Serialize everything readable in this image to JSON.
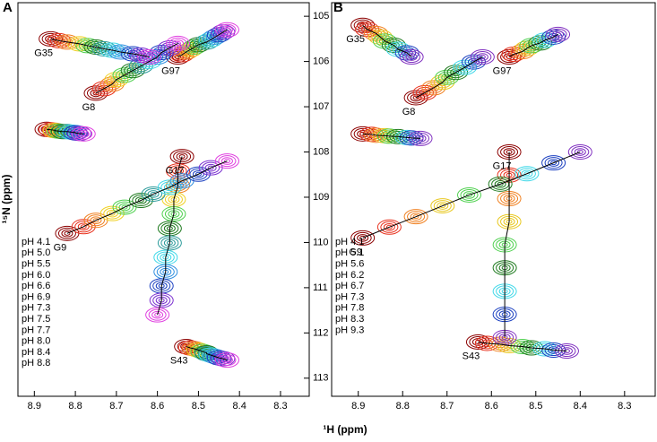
{
  "chart_data": [
    {
      "type": "contour",
      "title": "A",
      "ylabel": "¹⁵N (ppm)",
      "xlabel": "¹H (ppm)",
      "xlim": [
        8.94,
        8.23
      ],
      "ylim": [
        104.7,
        113.4
      ],
      "xticks": [
        8.9,
        8.8,
        8.7,
        8.6,
        8.5,
        8.4,
        8.3
      ],
      "yticks": [
        105,
        106,
        107,
        108,
        109,
        110,
        111,
        112,
        113
      ],
      "categories": [
        "G35",
        "G97",
        "G8",
        null,
        "G17",
        "G9",
        "S43"
      ],
      "series": [
        {
          "name": "pH 4.1",
          "color": "#8b0000",
          "x": [
            8.86,
            8.55,
            8.75,
            8.87,
            8.54,
            8.82,
            8.53
          ],
          "y": [
            105.5,
            105.9,
            106.7,
            107.5,
            108.1,
            109.8,
            112.3
          ]
        },
        {
          "name": "pH 5.0",
          "color": "#e8301c",
          "x": [
            8.84,
            8.54,
            8.73,
            8.86,
            8.55,
            8.78,
            8.52
          ],
          "y": [
            105.54,
            105.85,
            106.6,
            107.51,
            108.42,
            109.65,
            112.33
          ]
        },
        {
          "name": "pH 5.5",
          "color": "#f08020",
          "x": [
            8.82,
            8.53,
            8.71,
            8.85,
            8.55,
            8.75,
            8.51
          ],
          "y": [
            105.57,
            105.79,
            106.5,
            107.52,
            108.74,
            109.51,
            112.35
          ]
        },
        {
          "name": "pH 6.0",
          "color": "#f0d020",
          "x": [
            8.79,
            8.52,
            8.7,
            8.85,
            8.56,
            8.71,
            8.5
          ],
          "y": [
            105.61,
            105.74,
            106.4,
            107.53,
            109.05,
            109.36,
            112.38
          ]
        },
        {
          "name": "pH 6.6",
          "color": "#4fd04f",
          "x": [
            8.77,
            8.51,
            8.68,
            8.84,
            8.56,
            8.68,
            8.49
          ],
          "y": [
            105.65,
            105.68,
            106.3,
            107.54,
            109.37,
            109.22,
            112.41
          ]
        },
        {
          "name": "pH 6.9",
          "color": "#1e7a1e",
          "x": [
            8.75,
            8.5,
            8.66,
            8.83,
            8.57,
            8.64,
            8.48
          ],
          "y": [
            105.68,
            105.63,
            106.2,
            107.55,
            109.69,
            109.07,
            112.44
          ]
        },
        {
          "name": "pH 7.3",
          "color": "#2a9a9a",
          "x": [
            8.73,
            8.48,
            8.64,
            8.82,
            8.57,
            8.61,
            8.48
          ],
          "y": [
            105.72,
            105.57,
            106.1,
            107.55,
            110.01,
            108.93,
            112.46
          ]
        },
        {
          "name": "pH 7.5",
          "color": "#40d8e8",
          "x": [
            8.71,
            8.47,
            8.62,
            8.81,
            8.58,
            8.57,
            8.47
          ],
          "y": [
            105.75,
            105.52,
            106.0,
            107.56,
            110.33,
            108.78,
            112.49
          ]
        },
        {
          "name": "pH 7.7",
          "color": "#2f8fe0",
          "x": [
            8.69,
            8.46,
            8.6,
            8.8,
            8.58,
            8.54,
            8.46
          ],
          "y": [
            105.79,
            105.46,
            105.9,
            107.57,
            110.65,
            108.64,
            112.52
          ]
        },
        {
          "name": "pH 8.0",
          "color": "#1a3fc0",
          "x": [
            8.66,
            8.45,
            8.59,
            8.8,
            8.59,
            8.5,
            8.45
          ],
          "y": [
            105.83,
            105.41,
            105.8,
            107.58,
            110.96,
            108.49,
            112.55
          ]
        },
        {
          "name": "pH 8.4",
          "color": "#7a2fd0",
          "x": [
            8.64,
            8.44,
            8.57,
            8.79,
            8.59,
            8.47,
            8.44
          ],
          "y": [
            105.86,
            105.35,
            105.7,
            107.59,
            111.28,
            108.35,
            112.57
          ]
        },
        {
          "name": "pH 8.8",
          "color": "#e040e0",
          "x": [
            8.62,
            8.43,
            8.55,
            8.78,
            8.6,
            8.43,
            8.43
          ],
          "y": [
            105.9,
            105.3,
            105.6,
            107.6,
            111.6,
            108.2,
            112.6
          ]
        }
      ]
    },
    {
      "type": "contour",
      "title": "B",
      "xlim": [
        8.96,
        8.231
      ],
      "ylim": [
        104.7,
        113.4
      ],
      "xticks": [
        8.9,
        8.8,
        8.7,
        8.6,
        8.5,
        8.4,
        8.3
      ],
      "categories": [
        "G35",
        "G97",
        "G8",
        null,
        "G17",
        "G9",
        "S43"
      ],
      "series": [
        {
          "name": "pH 4.1",
          "color": "#8b0000",
          "x": [
            8.89,
            8.56,
            8.77,
            8.89,
            8.56,
            8.89,
            8.63
          ],
          "y": [
            105.2,
            105.9,
            106.8,
            107.6,
            108.0,
            109.9,
            112.2
          ]
        },
        {
          "name": "pH 5.1",
          "color": "#e8301c",
          "x": [
            8.88,
            8.55,
            8.75,
            8.87,
            8.56,
            8.83,
            8.61
          ],
          "y": [
            105.29,
            105.84,
            106.69,
            107.61,
            108.51,
            109.66,
            112.23
          ]
        },
        {
          "name": "pH 5.6",
          "color": "#f08020",
          "x": [
            8.86,
            8.53,
            8.73,
            8.86,
            8.56,
            8.77,
            8.58
          ],
          "y": [
            105.38,
            105.78,
            106.58,
            107.63,
            109.03,
            109.43,
            112.25
          ]
        },
        {
          "name": "pH 6.2",
          "color": "#e8c820",
          "x": [
            8.85,
            8.52,
            8.71,
            8.84,
            8.56,
            8.71,
            8.56
          ],
          "y": [
            105.46,
            105.71,
            106.46,
            107.64,
            109.54,
            109.19,
            112.28
          ]
        },
        {
          "name": "pH 6.7",
          "color": "#4fd04f",
          "x": [
            8.84,
            8.51,
            8.7,
            8.83,
            8.57,
            8.65,
            8.53
          ],
          "y": [
            105.55,
            105.65,
            106.35,
            107.65,
            110.05,
            108.95,
            112.3
          ]
        },
        {
          "name": "pH 7.3",
          "color": "#1e7a1e",
          "x": [
            8.82,
            8.49,
            8.68,
            8.81,
            8.57,
            8.58,
            8.51
          ],
          "y": [
            105.64,
            105.59,
            106.24,
            107.66,
            110.56,
            108.71,
            112.33
          ]
        },
        {
          "name": "pH 7.8",
          "color": "#40d8e8",
          "x": [
            8.81,
            8.48,
            8.66,
            8.79,
            8.57,
            8.52,
            8.48
          ],
          "y": [
            105.73,
            105.53,
            106.13,
            107.68,
            111.08,
            108.48,
            112.35
          ]
        },
        {
          "name": "pH 8.3",
          "color": "#1a3fc0",
          "x": [
            8.79,
            8.46,
            8.64,
            8.78,
            8.57,
            8.46,
            8.46
          ],
          "y": [
            105.81,
            105.46,
            106.01,
            107.69,
            111.59,
            108.24,
            112.38
          ]
        },
        {
          "name": "pH 9.3",
          "color": "#8030c0",
          "x": [
            8.78,
            8.45,
            8.62,
            8.76,
            8.57,
            8.4,
            8.43
          ],
          "y": [
            105.9,
            105.4,
            105.9,
            107.7,
            112.1,
            108.0,
            112.4
          ]
        }
      ]
    }
  ]
}
